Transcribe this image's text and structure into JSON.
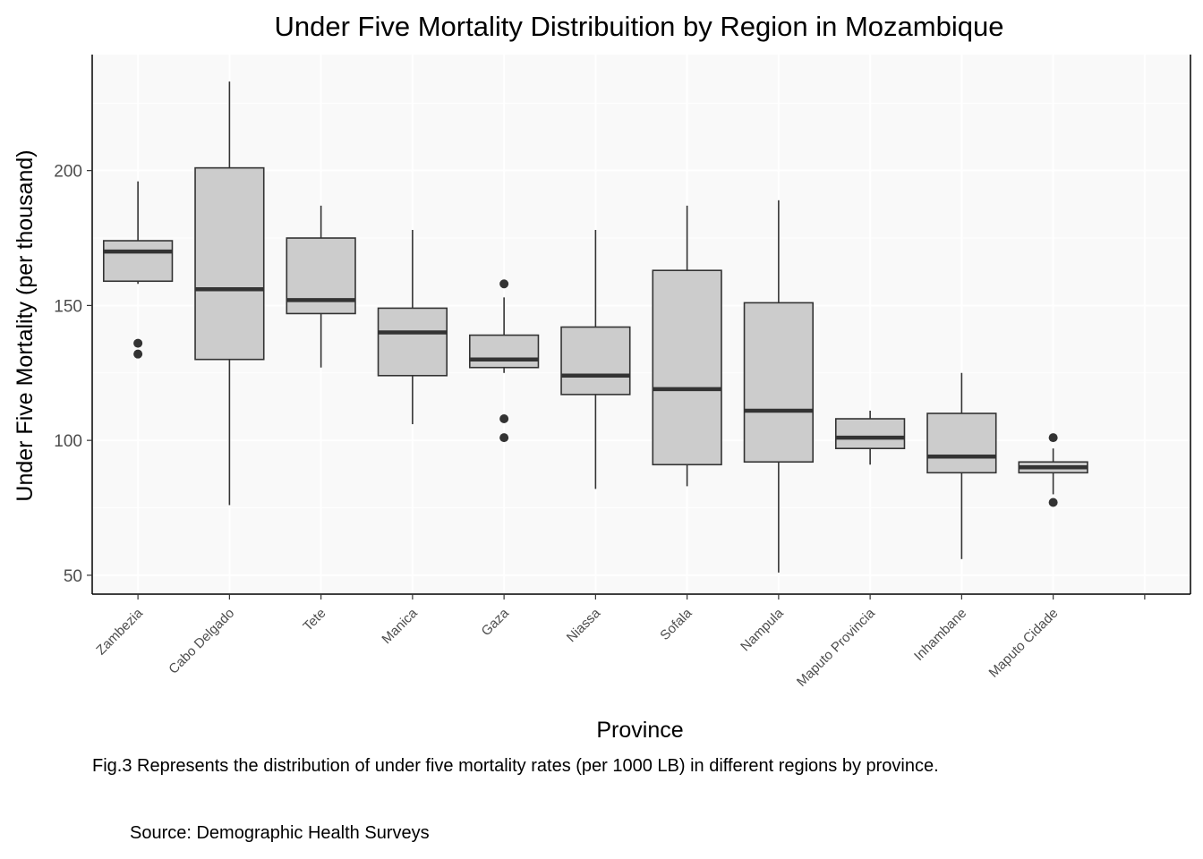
{
  "chart_data": {
    "type": "box",
    "title": "Under Five Mortality Distribuition by Region in Mozambique",
    "xlabel": "Province",
    "ylabel": "Under Five Mortality (per thousand)",
    "yticks": [
      50,
      100,
      150,
      200
    ],
    "ylim": [
      43,
      243
    ],
    "grid": true,
    "categories": [
      "Zambezia",
      "Cabo Delgado",
      "Tete",
      "Manica",
      "Gaza",
      "Niassa",
      "Sofala",
      "Nampula",
      "Maputo Provincia",
      "Inhambane",
      "Maputo Cidade"
    ],
    "boxes": [
      {
        "category": "Zambezia",
        "whisker_low": 158,
        "q1": 159,
        "median": 170,
        "q3": 174,
        "whisker_high": 196,
        "outliers": [
          136,
          132
        ]
      },
      {
        "category": "Cabo Delgado",
        "whisker_low": 76,
        "q1": 130,
        "median": 156,
        "q3": 201,
        "whisker_high": 233,
        "outliers": []
      },
      {
        "category": "Tete",
        "whisker_low": 127,
        "q1": 147,
        "median": 152,
        "q3": 175,
        "whisker_high": 187,
        "outliers": []
      },
      {
        "category": "Manica",
        "whisker_low": 106,
        "q1": 124,
        "median": 140,
        "q3": 149,
        "whisker_high": 178,
        "outliers": []
      },
      {
        "category": "Gaza",
        "whisker_low": 125,
        "q1": 127,
        "median": 130,
        "q3": 139,
        "whisker_high": 153,
        "outliers": [
          158,
          108,
          101
        ]
      },
      {
        "category": "Niassa",
        "whisker_low": 82,
        "q1": 117,
        "median": 124,
        "q3": 142,
        "whisker_high": 178,
        "outliers": []
      },
      {
        "category": "Sofala",
        "whisker_low": 83,
        "q1": 91,
        "median": 119,
        "q3": 163,
        "whisker_high": 187,
        "outliers": []
      },
      {
        "category": "Nampula",
        "whisker_low": 51,
        "q1": 92,
        "median": 111,
        "q3": 151,
        "whisker_high": 189,
        "outliers": []
      },
      {
        "category": "Maputo Provincia",
        "whisker_low": 91,
        "q1": 97,
        "median": 101,
        "q3": 108,
        "whisker_high": 111,
        "outliers": []
      },
      {
        "category": "Inhambane",
        "whisker_low": 56,
        "q1": 88,
        "median": 94,
        "q3": 110,
        "whisker_high": 125,
        "outliers": []
      },
      {
        "category": "Maputo Cidade",
        "whisker_low": 80,
        "q1": 88,
        "median": 90,
        "q3": 92,
        "whisker_high": 97,
        "outliers": [
          101,
          77
        ]
      }
    ],
    "colors": {
      "panel_bg": "#f9f9f9",
      "grid": "#ffffff",
      "box_fill": "#cccccc",
      "box_stroke": "#333333",
      "axis": "#000000"
    }
  },
  "caption": "Fig.3 Represents the distribution of under five mortality rates (per 1000 LB) in different regions by province.",
  "source": "Source: Demographic Health Surveys"
}
